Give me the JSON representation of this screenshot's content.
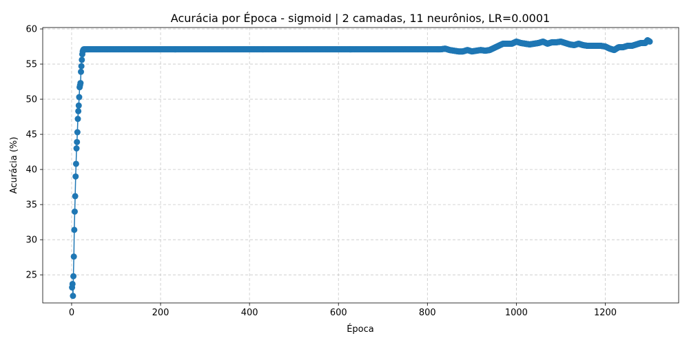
{
  "chart_data": {
    "type": "line",
    "title": "Acurácia por Época - sigmoid | 2 camadas, 11 neurônios, LR=0.0001",
    "xlabel": "Época",
    "ylabel": "Acurácia (%)",
    "xlim": [
      -65,
      1365
    ],
    "ylim": [
      21.0,
      60.2
    ],
    "xticks": [
      0,
      200,
      400,
      600,
      800,
      1000,
      1200
    ],
    "yticks": [
      25,
      30,
      35,
      40,
      45,
      50,
      55,
      60
    ],
    "xtick_labels": [
      "0",
      "200",
      "400",
      "600",
      "800",
      "1000",
      "1200"
    ],
    "ytick_labels": [
      "25",
      "30",
      "35",
      "40",
      "45",
      "50",
      "55",
      "60"
    ],
    "grid": true,
    "marker": "circle",
    "series": [
      {
        "color": "#1f77b4",
        "x": [
          1,
          2,
          3,
          4,
          5,
          6,
          7,
          8,
          9,
          10,
          11,
          12,
          13,
          14,
          15,
          16,
          17,
          18,
          19,
          20,
          21,
          22,
          23,
          24,
          25,
          26,
          27,
          28,
          29,
          30,
          40,
          60,
          100,
          200,
          300,
          400,
          500,
          600,
          700,
          800,
          830,
          840,
          850,
          860,
          870,
          880,
          890,
          900,
          910,
          920,
          930,
          940,
          950,
          960,
          970,
          980,
          990,
          1000,
          1010,
          1020,
          1030,
          1040,
          1050,
          1060,
          1070,
          1080,
          1090,
          1100,
          1110,
          1120,
          1130,
          1140,
          1150,
          1160,
          1170,
          1180,
          1190,
          1200,
          1210,
          1220,
          1230,
          1240,
          1250,
          1260,
          1270,
          1280,
          1290,
          1295,
          1300
        ],
        "y": [
          23.2,
          23.7,
          22.0,
          24.8,
          27.6,
          31.4,
          34.0,
          36.2,
          39.0,
          40.8,
          43.0,
          43.9,
          45.3,
          47.2,
          48.3,
          49.1,
          50.3,
          51.7,
          52.0,
          52.3,
          53.9,
          54.7,
          55.6,
          56.4,
          56.8,
          57.0,
          57.1,
          57.1,
          57.1,
          57.1,
          57.1,
          57.1,
          57.1,
          57.1,
          57.1,
          57.1,
          57.1,
          57.1,
          57.1,
          57.1,
          57.1,
          57.2,
          57.0,
          56.9,
          56.8,
          56.8,
          57.0,
          56.8,
          56.9,
          57.0,
          56.9,
          57.0,
          57.3,
          57.6,
          57.9,
          57.9,
          57.9,
          58.2,
          58.0,
          57.9,
          57.8,
          57.9,
          58.0,
          58.2,
          57.9,
          58.1,
          58.1,
          58.2,
          58.0,
          57.8,
          57.7,
          57.9,
          57.7,
          57.6,
          57.6,
          57.6,
          57.6,
          57.5,
          57.2,
          57.0,
          57.4,
          57.4,
          57.6,
          57.6,
          57.8,
          58.0,
          58.0,
          58.4,
          58.2
        ]
      }
    ]
  }
}
